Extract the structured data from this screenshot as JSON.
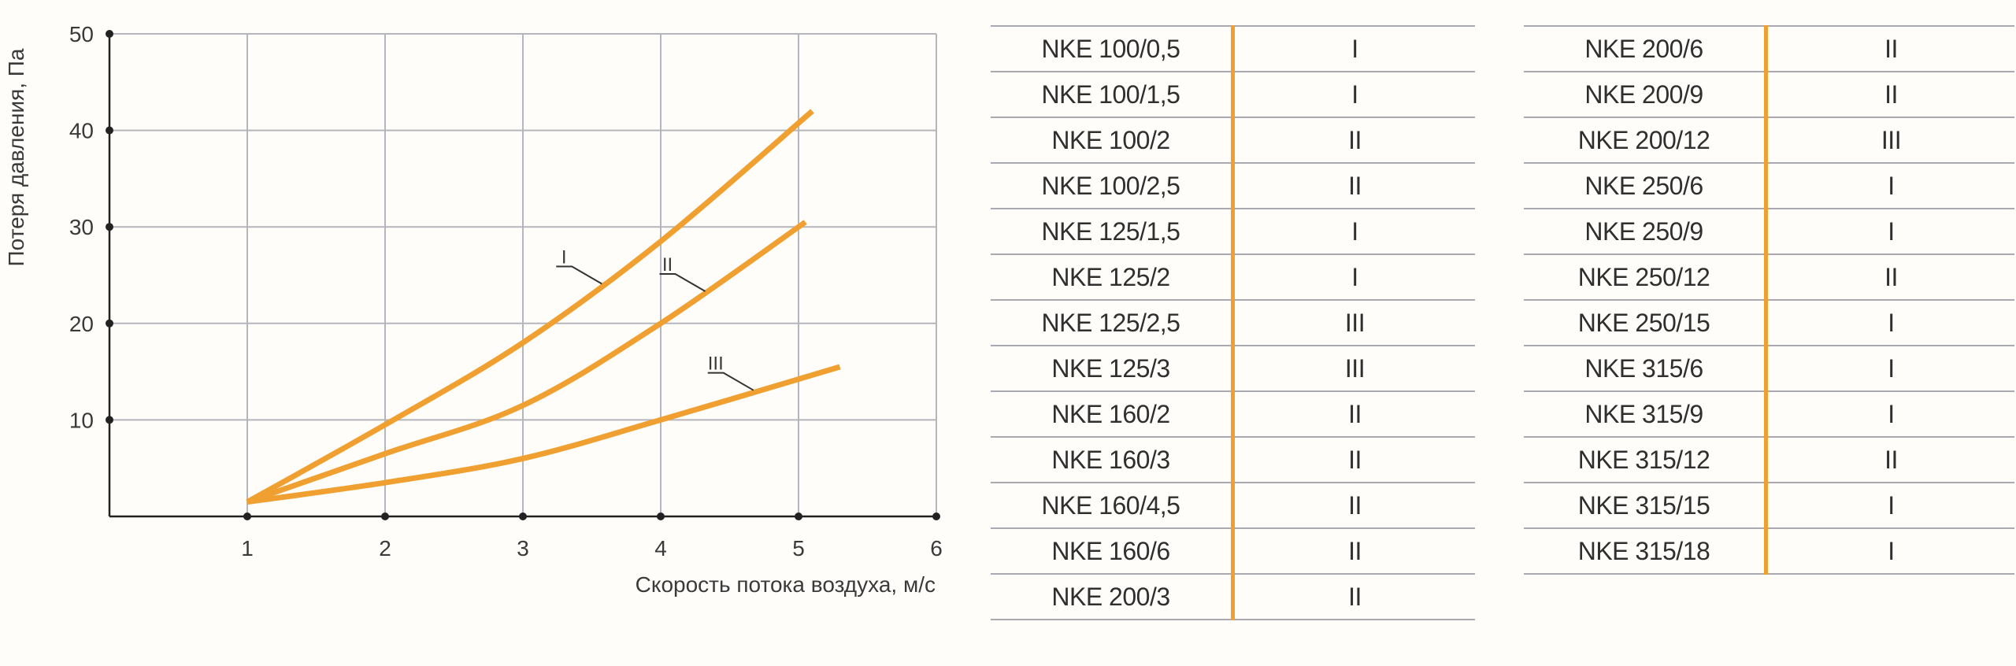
{
  "chart_data": {
    "type": "line",
    "xlabel": "Скорость потока воздуха, м/с",
    "ylabel": "Потеря давления, Па",
    "xlim": [
      0,
      6
    ],
    "ylim": [
      0,
      50
    ],
    "x_ticks": [
      1,
      2,
      3,
      4,
      5,
      6
    ],
    "y_ticks": [
      10,
      20,
      30,
      40,
      50
    ],
    "grid": true,
    "line_color": "#f0a030",
    "series": [
      {
        "name": "I",
        "x": [
          1,
          2,
          3,
          4,
          5.1
        ],
        "y": [
          1.5,
          9.5,
          18,
          28.5,
          42
        ]
      },
      {
        "name": "II",
        "x": [
          1,
          2,
          3,
          4,
          5.05
        ],
        "y": [
          1.5,
          6.5,
          11.5,
          20,
          30.5
        ]
      },
      {
        "name": "III",
        "x": [
          1,
          2,
          3,
          4,
          5.3
        ],
        "y": [
          1.5,
          3.5,
          6,
          10,
          15.5
        ]
      }
    ],
    "curve_labels": [
      "I",
      "II",
      "III"
    ]
  },
  "tables": {
    "left": [
      {
        "model": "NKE 100/0,5",
        "curve": "I"
      },
      {
        "model": "NKE 100/1,5",
        "curve": "I"
      },
      {
        "model": "NKE 100/2",
        "curve": "II"
      },
      {
        "model": "NKE 100/2,5",
        "curve": "II"
      },
      {
        "model": "NKE 125/1,5",
        "curve": "I"
      },
      {
        "model": "NKE 125/2",
        "curve": "I"
      },
      {
        "model": "NKE 125/2,5",
        "curve": "III"
      },
      {
        "model": "NKE 125/3",
        "curve": "III"
      },
      {
        "model": "NKE 160/2",
        "curve": "II"
      },
      {
        "model": "NKE 160/3",
        "curve": "II"
      },
      {
        "model": "NKE 160/4,5",
        "curve": "II"
      },
      {
        "model": "NKE 160/6",
        "curve": "II"
      },
      {
        "model": "NKE 200/3",
        "curve": "II"
      }
    ],
    "right": [
      {
        "model": "NKE 200/6",
        "curve": "II"
      },
      {
        "model": "NKE 200/9",
        "curve": "II"
      },
      {
        "model": "NKE 200/12",
        "curve": "III"
      },
      {
        "model": "NKE 250/6",
        "curve": "I"
      },
      {
        "model": "NKE 250/9",
        "curve": "I"
      },
      {
        "model": "NKE 250/12",
        "curve": "II"
      },
      {
        "model": "NKE 250/15",
        "curve": "I"
      },
      {
        "model": "NKE 315/6",
        "curve": "I"
      },
      {
        "model": "NKE 315/9",
        "curve": "I"
      },
      {
        "model": "NKE 315/12",
        "curve": "II"
      },
      {
        "model": "NKE 315/15",
        "curve": "I"
      },
      {
        "model": "NKE 315/18",
        "curve": "I"
      }
    ]
  }
}
